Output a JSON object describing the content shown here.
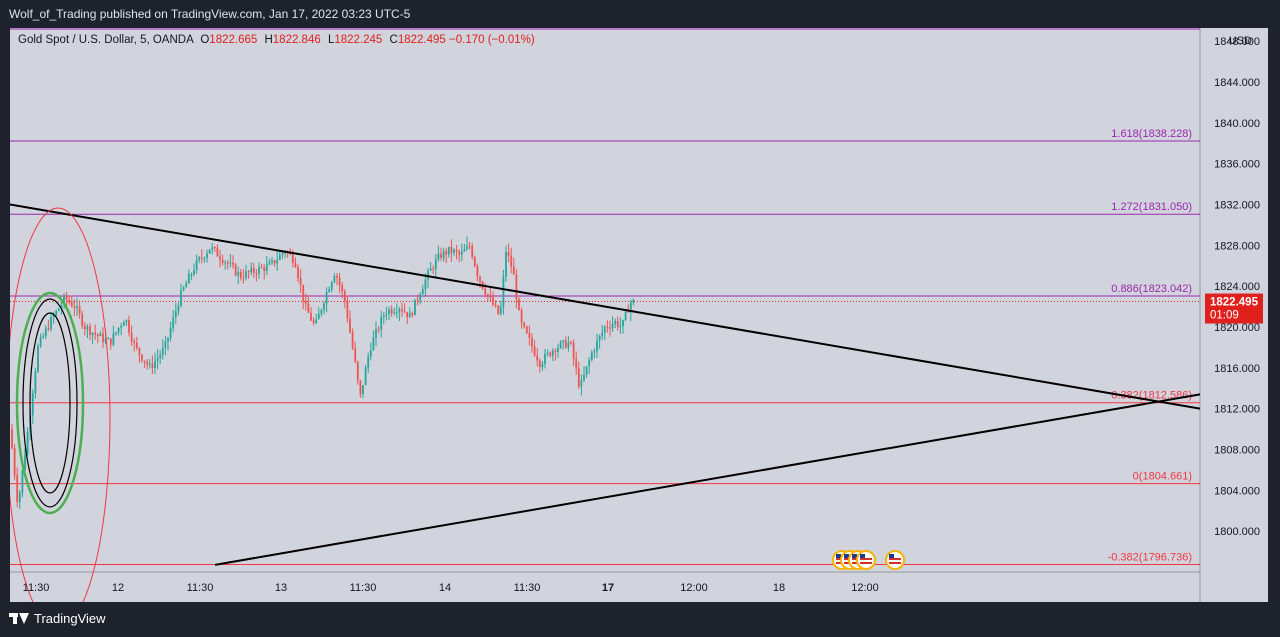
{
  "header": {
    "published_by": "Wolf_of_Trading published on TradingView.com, Jan 17, 2022 03:23 UTC-5"
  },
  "symbol": {
    "name": "Gold Spot / U.S. Dollar, 5, OANDA",
    "open_label": "O",
    "open": "1822.665",
    "high_label": "H",
    "high": "1822.846",
    "low_label": "L",
    "low": "1822.245",
    "close_label": "C",
    "close": "1822.495",
    "change": "−0.170 (−0.01%)"
  },
  "footer": {
    "brand": "TradingView"
  },
  "colors": {
    "background": "#d1d4dc",
    "frame": "#1e222d",
    "fib_purple": "#9c27b0",
    "fib_red": "#f23645",
    "trendline": "#000000",
    "bull_candle": "#26a69a",
    "bear_candle": "#ef5350",
    "price_tag": "#e0201c",
    "circle_green": "#4caf50"
  },
  "chart_data": {
    "type": "candlestick",
    "currency": "USD",
    "y_ticks": [
      "1848.000",
      "1844.000",
      "1840.000",
      "1836.000",
      "1832.000",
      "1828.000",
      "1824.000",
      "1820.000",
      "1816.000",
      "1812.000",
      "1808.000",
      "1804.000",
      "1800.000"
    ],
    "x_ticks": [
      "11:30",
      "12",
      "11:30",
      "13",
      "11:30",
      "14",
      "11:30",
      "17",
      "12:00",
      "18",
      "12:00"
    ],
    "ylim": [
      1796,
      1849
    ],
    "last_price": "1822.495",
    "countdown": "01:09",
    "fib_levels": [
      {
        "label": "1.618(1838.228)",
        "value": 1838.228,
        "color": "#9c27b0"
      },
      {
        "label": "1.272(1831.050)",
        "value": 1831.05,
        "color": "#9c27b0"
      },
      {
        "label": "0.886(1823.042)",
        "value": 1823.042,
        "color": "#9c27b0"
      },
      {
        "label": "0.382(1812.586)",
        "value": 1812.586,
        "color": "#f23645"
      },
      {
        "label": "0(1804.661)",
        "value": 1804.661,
        "color": "#f23645"
      },
      {
        "label": "-0.382(1796.736)",
        "value": 1796.736,
        "color": "#f23645"
      }
    ],
    "close_path": [
      [
        0,
        1810.0
      ],
      [
        8,
        1802.5
      ],
      [
        18,
        1810.0
      ],
      [
        28,
        1818.0
      ],
      [
        40,
        1820.5
      ],
      [
        55,
        1822.8
      ],
      [
        65,
        1822.0
      ],
      [
        75,
        1820.0
      ],
      [
        90,
        1819.0
      ],
      [
        100,
        1818.5
      ],
      [
        115,
        1821.0
      ],
      [
        125,
        1818.0
      ],
      [
        140,
        1816.0
      ],
      [
        155,
        1818.0
      ],
      [
        170,
        1823.0
      ],
      [
        185,
        1826.0
      ],
      [
        200,
        1827.8
      ],
      [
        215,
        1826.5
      ],
      [
        230,
        1825.0
      ],
      [
        245,
        1825.5
      ],
      [
        260,
        1826.0
      ],
      [
        275,
        1827.5
      ],
      [
        285,
        1826.5
      ],
      [
        295,
        1822.0
      ],
      [
        305,
        1820.0
      ],
      [
        315,
        1823.0
      ],
      [
        325,
        1825.5
      ],
      [
        335,
        1822.5
      ],
      [
        345,
        1816.5
      ],
      [
        350,
        1813.0
      ],
      [
        360,
        1818.0
      ],
      [
        375,
        1821.5
      ],
      [
        390,
        1822.0
      ],
      [
        400,
        1821.0
      ],
      [
        410,
        1823.5
      ],
      [
        420,
        1825.5
      ],
      [
        430,
        1827.0
      ],
      [
        440,
        1827.5
      ],
      [
        450,
        1827.0
      ],
      [
        460,
        1828.0
      ],
      [
        468,
        1825.0
      ],
      [
        478,
        1823.0
      ],
      [
        490,
        1821.0
      ],
      [
        496,
        1827.5
      ],
      [
        503,
        1825.5
      ],
      [
        510,
        1820.5
      ],
      [
        520,
        1818.5
      ],
      [
        530,
        1816.5
      ],
      [
        545,
        1818.0
      ],
      [
        560,
        1818.5
      ],
      [
        570,
        1814.0
      ],
      [
        582,
        1817.5
      ],
      [
        595,
        1820.0
      ],
      [
        605,
        1820.5
      ],
      [
        612,
        1820.0
      ],
      [
        620,
        1822.4
      ],
      [
        625,
        1822.5
      ]
    ],
    "trendlines": [
      {
        "from": [
          0,
          1832.0
        ],
        "to": [
          1190,
          1812.0
        ]
      },
      {
        "from": [
          205,
          1796.7
        ],
        "to": [
          1190,
          1813.4
        ]
      }
    ]
  }
}
